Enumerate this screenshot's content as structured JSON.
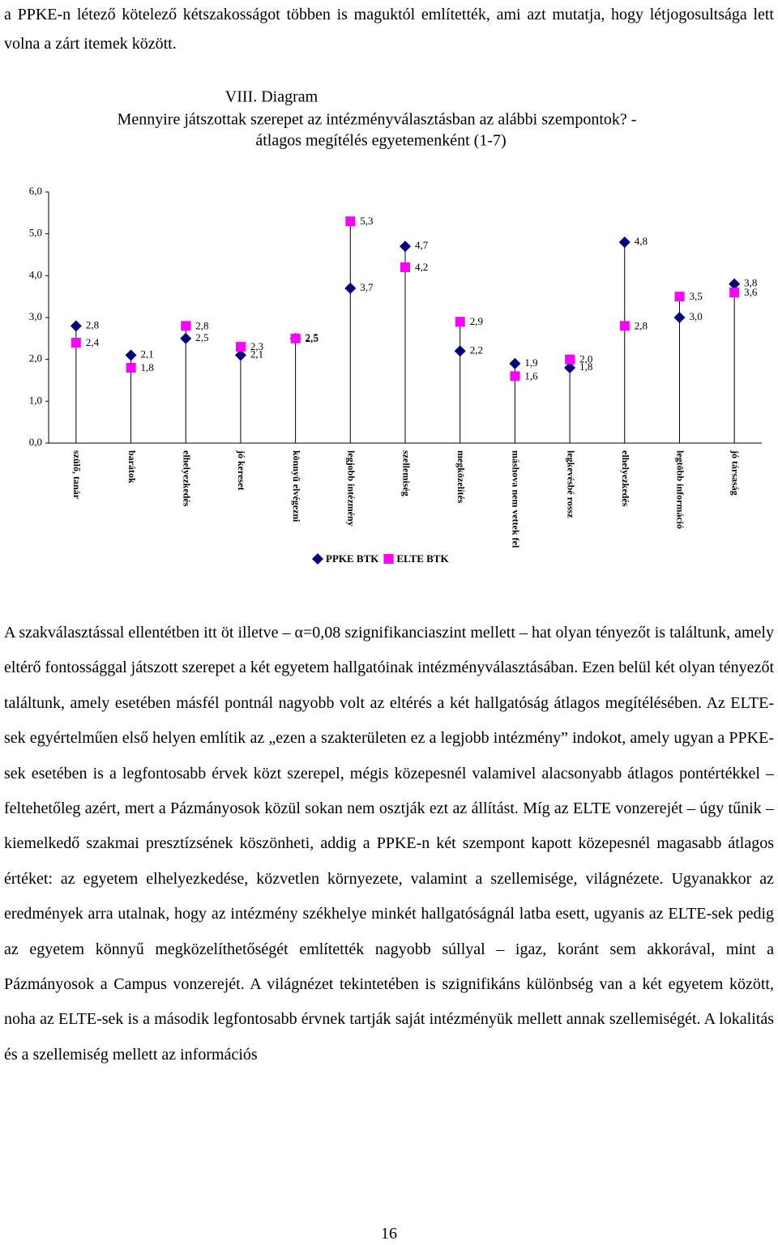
{
  "intro": "a PPKE-n létező kötelező kétszakosságot többen is maguktól említették, ami azt mutatja, hogy létjogosultsága lett volna a zárt itemek között.",
  "chart_data": {
    "type": "dot",
    "title": "VIII. Diagram",
    "subtitle": [
      "Mennyire játszottak szerepet az intézményválasztásban az alábbi szempontok? -",
      "átlagos megítélés egyetemenként (1-7)"
    ],
    "categories": [
      "szülő, tanár",
      "barátok",
      "elhelyezkedés",
      "jó kereset",
      "könnyű elvégezni",
      "legjobb intézmény",
      "szellemiség",
      "megközelítés",
      "máshova nem vettek fel",
      "legkevésbé rossz",
      "elhelyezkedés",
      "legtöbb információ",
      "jó társaság"
    ],
    "series": [
      {
        "name": "PPKE BTK",
        "color": "#000080",
        "marker": "diamond",
        "values": [
          2.8,
          2.1,
          2.5,
          2.1,
          2.5,
          3.7,
          4.7,
          2.2,
          1.9,
          1.8,
          4.8,
          3.0,
          3.8
        ],
        "value_labels": [
          "2,8",
          "2,1",
          "2,5",
          "2,1",
          "2,5",
          "3,7",
          "4,7",
          "2,2",
          "1,9",
          "1,8",
          "4,8",
          "3,0",
          "3,8"
        ]
      },
      {
        "name": "ELTE BTK",
        "color": "#ff00ff",
        "marker": "square",
        "values": [
          2.4,
          1.8,
          2.8,
          2.3,
          2.5,
          5.3,
          4.2,
          2.9,
          1.6,
          2.0,
          2.8,
          3.5,
          3.6
        ],
        "value_labels": [
          "2,4",
          "1,8",
          "2,8",
          "2,3",
          "2,5",
          "5,3",
          "4,2",
          "2,9",
          "1,6",
          "2,0",
          "2,8",
          "3,5",
          "3,6"
        ]
      }
    ],
    "ylim": [
      0,
      6
    ],
    "yticks": [
      {
        "value": 0,
        "label": "0,0"
      },
      {
        "value": 1,
        "label": "1,0"
      },
      {
        "value": 2,
        "label": "2,0"
      },
      {
        "value": 3,
        "label": "3,0"
      },
      {
        "value": 4,
        "label": "4,0"
      },
      {
        "value": 5,
        "label": "5,0"
      },
      {
        "value": 6,
        "label": "6,0"
      }
    ],
    "drop_lines": true,
    "legend": "bottom"
  },
  "body": "A szakválasztással ellentétben itt öt illetve – α=0,08 szignifikanciaszint mellett – hat olyan tényezőt is találtunk, amely eltérő fontossággal játszott szerepet a két egyetem hallgatóinak intézményválasztásában. Ezen belül két olyan tényezőt találtunk, amely esetében másfél pontnál nagyobb volt az eltérés a két hallgatóság átlagos megítélésében. Az ELTE-sek egyértelműen első helyen említik az „ezen a szakterületen ez a legjobb intézmény” indokot, amely ugyan a PPKE-sek esetében is a legfontosabb érvek közt szerepel, mégis közepesnél valamivel alacsonyabb átlagos pontértékkel – feltehetőleg azért, mert a Pázmányosok közül sokan nem osztják ezt az állítást. Míg az ELTE vonzerejét – úgy tűnik – kiemelkedő szakmai presztízsének köszönheti, addig a PPKE-n két szempont kapott közepesnél magasabb átlagos értéket: az egyetem elhelyezkedése, közvetlen környezete, valamint a szellemisége, világnézete. Ugyanakkor az eredmények arra utalnak, hogy az intézmény székhelye minkét hallgatóságnál latba esett, ugyanis az ELTE-sek pedig az egyetem könnyű megközelíthetőségét említették nagyobb súllyal – igaz, koránt sem akkorával, mint a Pázmányosok a Campus vonzerejét. A világnézet tekintetében is szignifikáns különbség van a két egyetem között, noha az ELTE-sek is a második legfontosabb érvnek tartják saját intézményük mellett annak szellemiségét. A lokalitás és a szellemiség mellett az információs",
  "page_number": "16"
}
